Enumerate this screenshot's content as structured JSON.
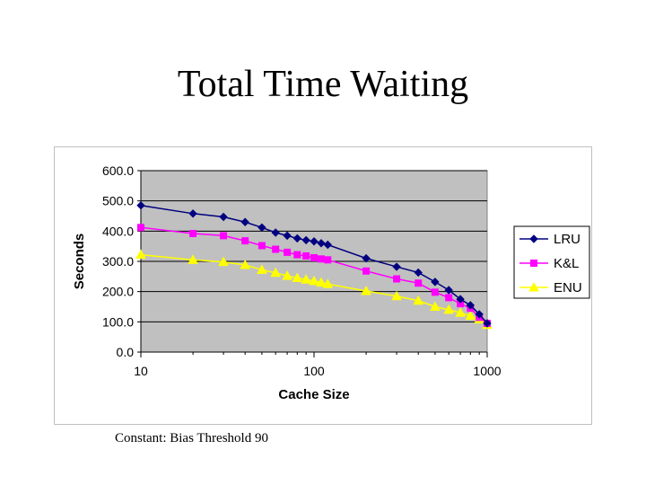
{
  "slide": {
    "title": "Total Time Waiting",
    "footnote": "Constant: Bias Threshold 90"
  },
  "chart_data": {
    "type": "line",
    "title": "",
    "xlabel": "Cache Size",
    "ylabel": "Seconds",
    "x_scale": "log",
    "xlim": [
      10,
      1000
    ],
    "ylim": [
      0,
      600
    ],
    "x_ticks": [
      10,
      100,
      1000
    ],
    "x_tick_labels": [
      "10",
      "100",
      "1000"
    ],
    "y_ticks": [
      0,
      100,
      200,
      300,
      400,
      500,
      600
    ],
    "y_tick_labels": [
      "0.0",
      "100.0",
      "200.0",
      "300.0",
      "400.0",
      "500.0",
      "600.0"
    ],
    "grid": true,
    "legend_position": "right",
    "plot_background": "#c0c0c0",
    "x": [
      10,
      20,
      30,
      40,
      50,
      60,
      70,
      80,
      90,
      100,
      110,
      120,
      200,
      300,
      400,
      500,
      600,
      700,
      800,
      900,
      1000
    ],
    "series": [
      {
        "name": "LRU",
        "color": "#000080",
        "marker": "diamond",
        "values": [
          485,
          458,
          447,
          430,
          412,
          395,
          385,
          376,
          370,
          366,
          360,
          355,
          310,
          282,
          263,
          232,
          205,
          175,
          155,
          125,
          95
        ]
      },
      {
        "name": "K&L",
        "color": "#ff00ff",
        "marker": "square",
        "values": [
          412,
          392,
          385,
          368,
          352,
          340,
          330,
          322,
          318,
          312,
          308,
          305,
          268,
          242,
          228,
          198,
          180,
          160,
          145,
          115,
          95
        ]
      },
      {
        "name": "ENU",
        "color": "#ffff00",
        "marker": "triangle",
        "values": [
          322,
          305,
          298,
          288,
          272,
          262,
          252,
          245,
          240,
          235,
          230,
          225,
          202,
          185,
          170,
          150,
          140,
          130,
          120,
          108,
          90
        ]
      }
    ]
  }
}
